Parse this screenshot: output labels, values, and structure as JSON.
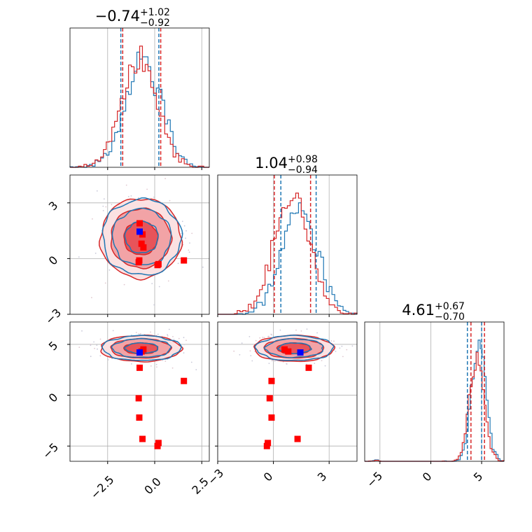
{
  "chart_data": {
    "type": "corner",
    "colors": {
      "blue": "#1f77b4",
      "red": "#d62728",
      "red_fill": "#e7545a",
      "red_fill_light": "#f2a3a6",
      "marker_red": "#ff0000",
      "marker_blue": "#0000ff"
    },
    "parameters": [
      {
        "id": "p0",
        "median": "−0.74",
        "plus": "+1.02",
        "minus": "−0.92",
        "range": [
          -4.5,
          2.9
        ],
        "ticks": [
          -2.5,
          0.0,
          2.5
        ],
        "tick_labels": [
          "−2.5",
          "0.0",
          "2.5"
        ]
      },
      {
        "id": "p1",
        "median": "1.04",
        "plus": "+0.98",
        "minus": "−0.94",
        "range": [
          -3.0,
          4.5
        ],
        "ticks": [
          -3,
          0,
          3
        ],
        "tick_labels": [
          "−3",
          "0",
          "3"
        ]
      },
      {
        "id": "p2",
        "median": "4.61",
        "plus": "+0.67",
        "minus": "−0.70",
        "range": [
          -6.5,
          7.2
        ],
        "ticks": [
          -5,
          0,
          5
        ],
        "tick_labels": [
          "−5",
          "0",
          "5"
        ]
      }
    ],
    "quantile_lines": {
      "p0": {
        "blue": [
          -1.8,
          0.22
        ],
        "red": [
          -1.7,
          0.32
        ]
      },
      "p1": {
        "blue": [
          0.4,
          2.3
        ],
        "red": [
          0.05,
          2.0
        ]
      },
      "p2": {
        "blue": [
          3.6,
          5.0
        ],
        "red": [
          3.95,
          5.28
        ]
      }
    },
    "marker_points": {
      "red": [
        {
          "p0": -0.8,
          "p1": 1.9,
          "p2": 2.7
        },
        {
          "p0": -0.7,
          "p1": 0.8,
          "p2": 4.3
        },
        {
          "p0": -0.6,
          "p1": 0.6,
          "p2": 4.5
        },
        {
          "p0": -0.85,
          "p1": -0.2,
          "p2": -0.3
        },
        {
          "p0": 0.2,
          "p1": -0.3,
          "p2": -4.7
        },
        {
          "p0": 0.15,
          "p1": -0.35,
          "p2": -5.0
        },
        {
          "p0": -0.65,
          "p1": 1.3,
          "p2": -4.3
        },
        {
          "p0": -0.82,
          "p1": -0.1,
          "p2": -2.2
        },
        {
          "p0": 1.55,
          "p1": -0.1,
          "p2": 1.4
        }
      ],
      "blue": [
        {
          "p0": -0.8,
          "p1": 1.45,
          "p2": 4.2
        }
      ]
    }
  }
}
